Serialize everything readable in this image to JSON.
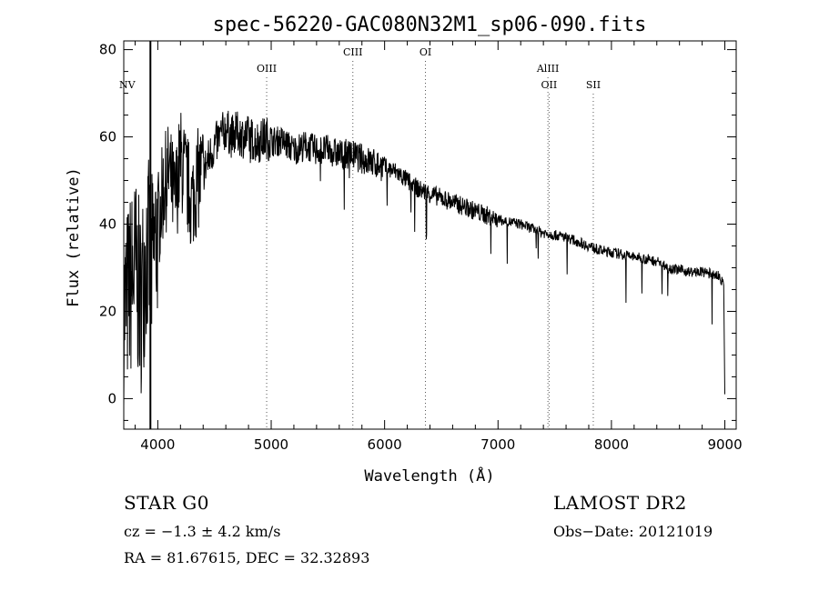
{
  "chart_data": {
    "type": "line",
    "title": "spec-56220-GAC080N32M1_sp06-090.fits",
    "xlabel": "Wavelength (Å)",
    "ylabel": "Flux (relative)",
    "xlim": [
      3700,
      9100
    ],
    "ylim": [
      -7,
      82
    ],
    "xticks": [
      4000,
      5000,
      6000,
      7000,
      8000,
      9000
    ],
    "yticks": [
      0,
      20,
      40,
      60,
      80
    ],
    "grid": false,
    "series": [
      {
        "x": [
          3700,
          3750,
          3800,
          3850,
          3900,
          3950,
          4000,
          4050,
          4100,
          4150,
          4200,
          4250,
          4300,
          4350,
          4400,
          4450,
          4500,
          4550,
          4600,
          4650,
          4700,
          4750,
          4800,
          4850,
          4900,
          4950,
          5000,
          5100,
          5200,
          5300,
          5400,
          5500,
          5600,
          5700,
          5800,
          5900,
          6000,
          6100,
          6200,
          6300,
          6400,
          6500,
          6600,
          6700,
          6800,
          6900,
          7000,
          7100,
          7200,
          7300,
          7400,
          7500,
          7600,
          7700,
          7800,
          7900,
          8000,
          8100,
          8200,
          8300,
          8400,
          8500,
          8600,
          8700,
          8800,
          8900,
          8950,
          8990,
          9000
        ],
        "y": [
          20,
          25,
          30,
          22,
          35,
          30,
          40,
          48,
          52,
          45,
          55,
          50,
          45,
          50,
          52,
          55,
          58,
          60,
          62,
          60,
          61,
          60,
          60,
          59,
          59,
          60,
          59,
          59,
          57,
          58,
          57,
          57,
          56,
          56,
          55,
          54,
          53,
          52,
          50,
          48,
          47,
          46,
          45,
          44,
          43,
          42,
          41,
          40.5,
          40,
          39,
          38,
          37.5,
          37,
          36,
          35,
          34,
          33.5,
          33,
          32.5,
          32,
          31.5,
          30,
          29.5,
          29,
          29,
          28.5,
          28,
          26,
          1
        ]
      }
    ],
    "lines": [
      {
        "label": "NV",
        "x": 3730,
        "row": 2
      },
      {
        "label": "OIII",
        "x": 4960,
        "row": 1
      },
      {
        "label": "CIII",
        "x": 5720,
        "row": 0
      },
      {
        "label": "OI",
        "x": 6360,
        "row": 0
      },
      {
        "label": "AlIII",
        "x": 7440,
        "row": 1
      },
      {
        "label": "OII",
        "x": 7450,
        "row": 2
      },
      {
        "label": "SII",
        "x": 7840,
        "row": 2
      }
    ]
  },
  "info": {
    "object_class": "STAR    G0",
    "survey": "LAMOST DR2",
    "cz": "cz = −1.3 ± 4.2 km/s",
    "obs_date": "Obs−Date: 20121019",
    "radec": "RA =  81.67615, DEC =  32.32893"
  }
}
